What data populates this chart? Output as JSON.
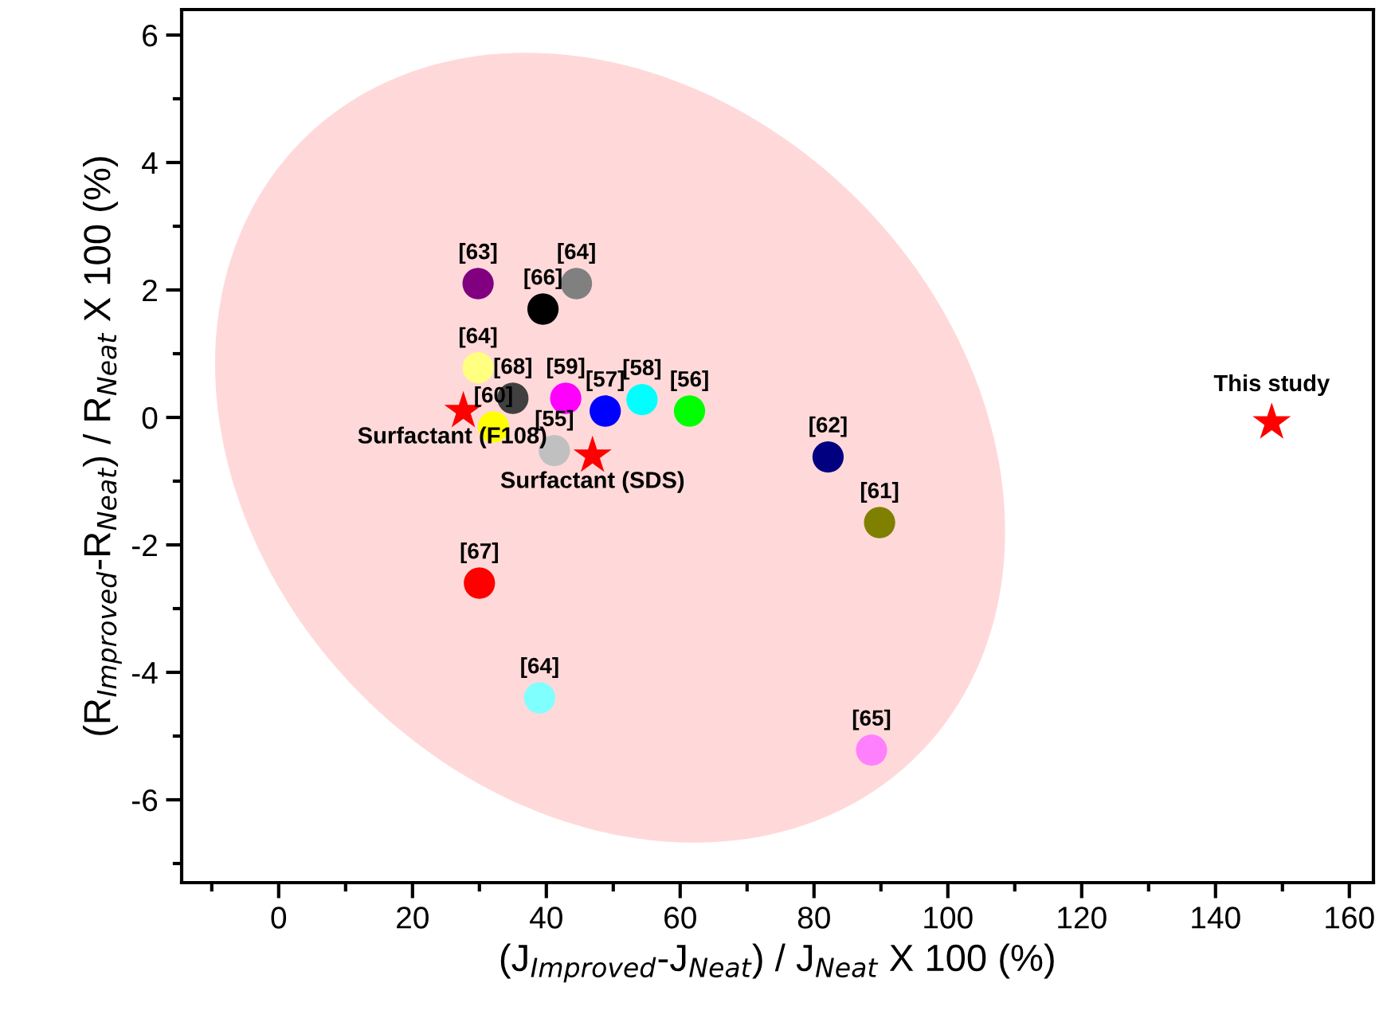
{
  "chart_data": {
    "type": "scatter",
    "xlabel": "(J$_{Improved}$-J$_{Neat}$) / J$_{Neat}$ X 100 (%)",
    "ylabel": "(R$_{Improved}$-R$_{Neat}$) / R$_{Neat}$ X 100 (%)",
    "xlim": [
      -14.5,
      163.6
    ],
    "ylim": [
      -7.3,
      6.4
    ],
    "xticks": [
      {
        "value": -10,
        "label": null
      },
      0,
      {
        "value": 10,
        "label": null
      },
      20,
      {
        "value": 30,
        "label": null
      },
      40,
      {
        "value": 50,
        "label": null
      },
      60,
      {
        "value": 70,
        "label": null
      },
      80,
      {
        "value": 90,
        "label": null
      },
      100,
      {
        "value": 110,
        "label": null
      },
      120,
      {
        "value": 130,
        "label": null
      },
      140,
      {
        "value": 150,
        "label": null
      },
      160
    ],
    "yticks": [
      {
        "value": -7,
        "label": null
      },
      {
        "value": -6,
        "label": "-6"
      },
      {
        "value": -5,
        "label": null
      },
      {
        "value": -4,
        "label": "-4"
      },
      {
        "value": -3,
        "label": null
      },
      {
        "value": -2,
        "label": "-2"
      },
      {
        "value": -1,
        "label": null
      },
      0,
      {
        "value": 1,
        "label": null
      },
      2,
      {
        "value": 3,
        "label": null
      },
      4,
      {
        "value": 5,
        "label": null
      },
      6
    ],
    "grid": false,
    "legend": false,
    "series": [
      {
        "marker": "circle",
        "x": [
          29.8,
          44.5,
          39.5,
          29.8,
          35,
          42.9,
          48.8,
          54.3,
          61.4,
          32.1,
          41.2,
          82.1,
          89.8,
          30,
          39,
          88.6
        ],
        "values": [
          2.1,
          2.1,
          1.7,
          0.78,
          0.3,
          0.3,
          0.1,
          0.28,
          0.1,
          -0.15,
          -0.52,
          -0.62,
          -1.65,
          -2.6,
          -4.4,
          -5.22
        ],
        "colors": [
          "#800080",
          "#808080",
          "#000000",
          "#ffff80",
          "#404040",
          "#ff00ff",
          "#0000ff",
          "#00ffff",
          "#00ff00",
          "#ffff00",
          "#c0c0c0",
          "#000080",
          "#808000",
          "#ff0000",
          "#80ffff",
          "#ff80ff"
        ]
      },
      {
        "marker": "star",
        "color": "#ff0000",
        "x": [
          27.6,
          46.9,
          148.4
        ],
        "values": [
          0.1,
          -0.6,
          -0.08
        ]
      }
    ],
    "annotations": [
      {
        "text": "[63]",
        "x": 29.8,
        "y": 2.1
      },
      {
        "text": "[64]",
        "x": 44.5,
        "y": 2.1
      },
      {
        "text": "[66]",
        "x": 39.5,
        "y": 1.7
      },
      {
        "text": "[64]",
        "x": 29.8,
        "y": 0.78
      },
      {
        "text": "[68]",
        "x": 35,
        "y": 0.3
      },
      {
        "text": "[59]",
        "x": 42.9,
        "y": 0.3
      },
      {
        "text": "[57]",
        "x": 48.8,
        "y": 0.1
      },
      {
        "text": "[58]",
        "x": 54.3,
        "y": 0.28
      },
      {
        "text": "[56]",
        "x": 61.4,
        "y": 0.1
      },
      {
        "text": "[60]",
        "x": 32.1,
        "y": -0.15
      },
      {
        "text": "[55]",
        "x": 41.2,
        "y": -0.52
      },
      {
        "text": "[62]",
        "x": 82.1,
        "y": -0.62
      },
      {
        "text": "[61]",
        "x": 89.8,
        "y": -1.65
      },
      {
        "text": "[67]",
        "x": 30,
        "y": -2.6
      },
      {
        "text": "[64]",
        "x": 39,
        "y": -4.4
      },
      {
        "text": "[65]",
        "x": 88.6,
        "y": -5.22
      },
      {
        "text": "Surfactant (F108)",
        "x": 27.6,
        "y": 0.1
      },
      {
        "text": "Surfactant (SDS)",
        "x": 46.9,
        "y": -0.6
      },
      {
        "text": "This study",
        "x": 148.4,
        "y": -0.08
      }
    ]
  }
}
